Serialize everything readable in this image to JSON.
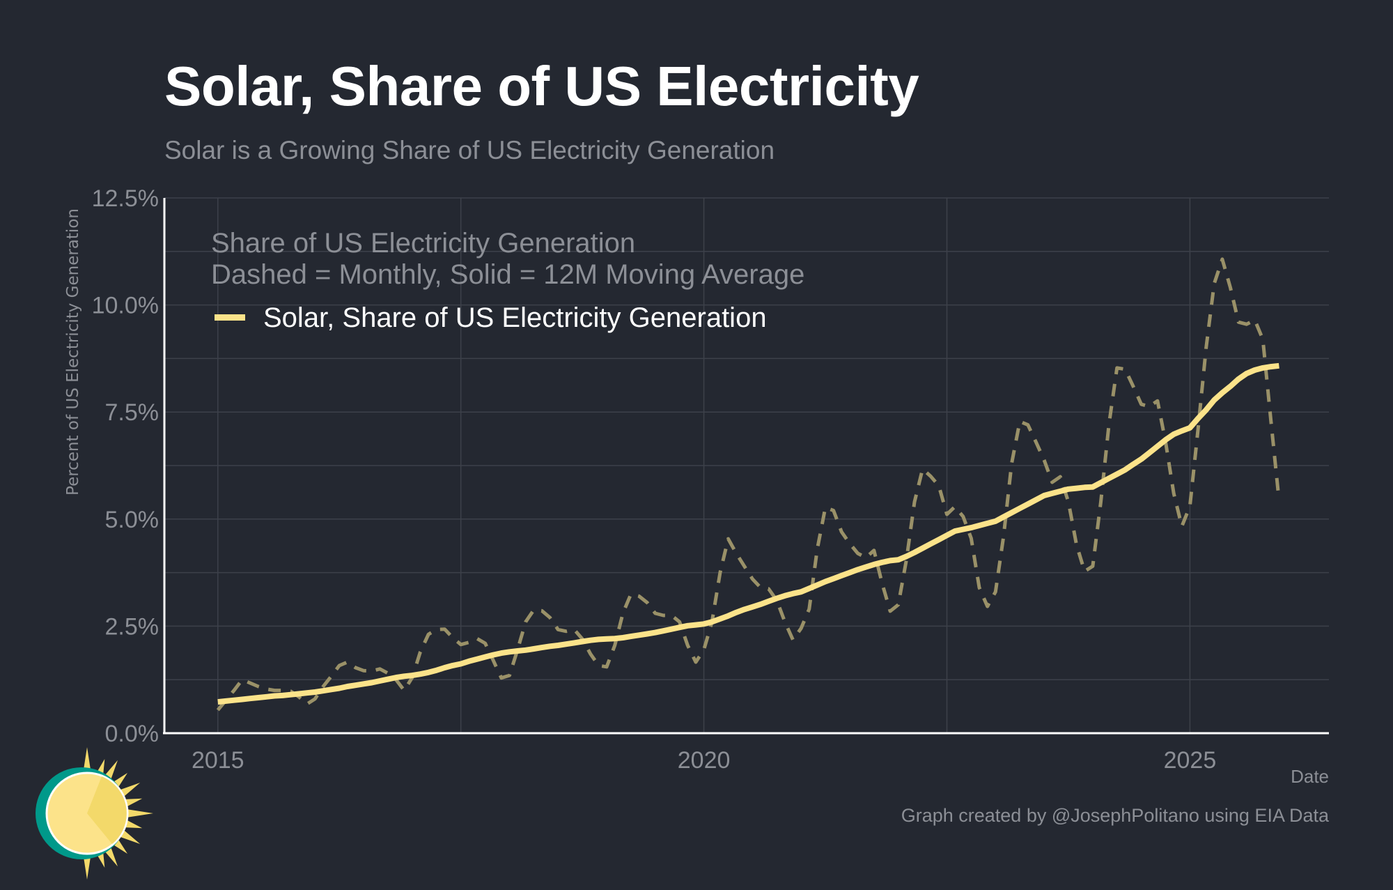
{
  "header": {
    "title": "Solar, Share of US Electricity",
    "subtitle": "Solar is a Growing Share of US Electricity Generation"
  },
  "footer": {
    "credit": "Graph created by @JosephPolitano using EIA Data",
    "logo": "sun-logo-icon"
  },
  "colors": {
    "background": "#242831",
    "solid_line": "#fce38a",
    "dashed_line": "#9a9168",
    "grid": "#3d414a",
    "axis": "#ffffff",
    "muted_text": "#8c8f96",
    "logo_teal": "#00998a",
    "logo_sun": "#fce38a"
  },
  "chart_data": {
    "type": "line",
    "title": "Solar, Share of US Electricity",
    "subtitle": "Solar is a Growing Share of US Electricity Generation",
    "xlabel": "Date",
    "ylabel": "Percent of US Electricity Generation",
    "legend_title": [
      "Share of US Electricity Generation",
      "Dashed = Monthly, Solid = 12M Moving Average"
    ],
    "legend_placement": "top-left",
    "legend_entries": [
      "Solar, Share of US Electricity Generation"
    ],
    "grid": true,
    "xlim": [
      2014.45,
      2026.43
    ],
    "ylim": [
      0,
      12.5
    ],
    "x_ticks": [
      2015,
      2020,
      2025
    ],
    "x_tick_labels": [
      "2015",
      "2020",
      "2025"
    ],
    "x_minor_gridlines": [
      2017.5,
      2022.5
    ],
    "y_ticks": [
      0,
      2.5,
      5,
      7.5,
      10,
      12.5
    ],
    "y_tick_labels": [
      "0.0%",
      "2.5%",
      "5.0%",
      "7.5%",
      "10.0%",
      "12.5%"
    ],
    "y_minor_gridlines": [
      1.25,
      3.75,
      6.25,
      8.75,
      11.25
    ],
    "x_start": "2015-01",
    "frequency": "monthly",
    "series": [
      {
        "name": "Solar, Share of US Electricity Generation (Monthly)",
        "style": "dashed",
        "values": [
          0.54,
          0.77,
          1.0,
          1.25,
          1.17,
          1.09,
          1.03,
          1.0,
          1.0,
          0.98,
          0.85,
          0.68,
          0.8,
          1.09,
          1.33,
          1.58,
          1.66,
          1.53,
          1.46,
          1.45,
          1.5,
          1.4,
          1.25,
          1.0,
          1.3,
          1.9,
          2.31,
          2.42,
          2.43,
          2.23,
          2.07,
          2.12,
          2.21,
          2.1,
          1.7,
          1.29,
          1.35,
          1.95,
          2.6,
          2.88,
          2.86,
          2.7,
          2.42,
          2.38,
          2.42,
          2.2,
          1.85,
          1.58,
          1.55,
          2.05,
          2.8,
          3.25,
          3.2,
          3.05,
          2.8,
          2.75,
          2.75,
          2.6,
          2.05,
          1.66,
          1.95,
          2.6,
          3.75,
          4.54,
          4.2,
          3.9,
          3.6,
          3.4,
          3.37,
          3.1,
          2.6,
          2.18,
          2.45,
          2.9,
          4.3,
          5.27,
          5.2,
          4.7,
          4.43,
          4.2,
          4.1,
          4.27,
          3.5,
          2.85,
          3.0,
          4.05,
          5.4,
          6.17,
          6.0,
          5.78,
          5.11,
          5.29,
          5.06,
          4.55,
          3.4,
          2.96,
          3.3,
          4.6,
          6.3,
          7.28,
          7.2,
          6.8,
          6.38,
          5.86,
          5.99,
          5.4,
          4.4,
          3.78,
          3.9,
          5.4,
          7.2,
          8.53,
          8.5,
          8.1,
          7.68,
          7.63,
          7.76,
          6.8,
          5.6,
          4.83,
          5.3,
          7.1,
          9.0,
          10.5,
          11.07,
          10.4,
          9.6,
          9.55,
          9.65,
          9.2,
          7.3,
          5.44
        ]
      },
      {
        "name": "Solar, Share of US Electricity Generation (12M Moving Average)",
        "style": "solid",
        "values": [
          0.73,
          0.75,
          0.77,
          0.79,
          0.81,
          0.83,
          0.85,
          0.87,
          0.88,
          0.9,
          0.92,
          0.94,
          0.96,
          0.99,
          1.02,
          1.05,
          1.09,
          1.12,
          1.15,
          1.18,
          1.22,
          1.26,
          1.3,
          1.33,
          1.35,
          1.38,
          1.42,
          1.47,
          1.53,
          1.58,
          1.62,
          1.68,
          1.73,
          1.78,
          1.83,
          1.87,
          1.9,
          1.92,
          1.94,
          1.97,
          2.0,
          2.03,
          2.05,
          2.08,
          2.11,
          2.14,
          2.17,
          2.19,
          2.2,
          2.21,
          2.23,
          2.26,
          2.29,
          2.32,
          2.35,
          2.39,
          2.43,
          2.47,
          2.51,
          2.53,
          2.55,
          2.6,
          2.67,
          2.74,
          2.82,
          2.89,
          2.95,
          3.01,
          3.08,
          3.15,
          3.21,
          3.26,
          3.3,
          3.38,
          3.46,
          3.54,
          3.61,
          3.68,
          3.75,
          3.82,
          3.88,
          3.94,
          3.99,
          4.03,
          4.05,
          4.13,
          4.22,
          4.32,
          4.42,
          4.52,
          4.62,
          4.72,
          4.76,
          4.8,
          4.85,
          4.9,
          4.95,
          5.05,
          5.15,
          5.25,
          5.35,
          5.45,
          5.55,
          5.6,
          5.65,
          5.7,
          5.72,
          5.74,
          5.75,
          5.85,
          5.95,
          6.05,
          6.15,
          6.28,
          6.4,
          6.55,
          6.7,
          6.85,
          6.98,
          7.06,
          7.13,
          7.35,
          7.55,
          7.78,
          7.95,
          8.1,
          8.27,
          8.4,
          8.48,
          8.53,
          8.56,
          8.58
        ]
      }
    ]
  }
}
